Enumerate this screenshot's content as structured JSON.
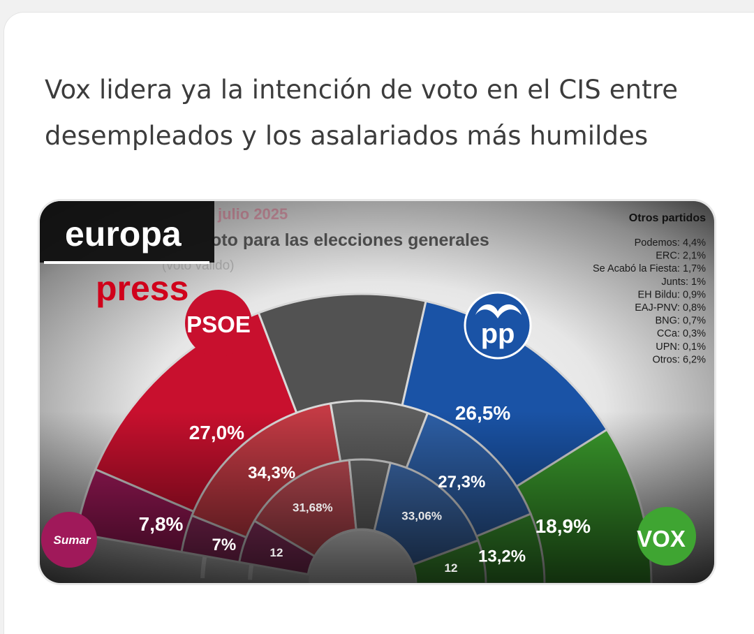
{
  "headline": "Vox lidera ya la intención de voto en el CIS entre desempleados y los asalariados más humildes",
  "logo": {
    "word1": "europa",
    "word2": "press"
  },
  "chart_data": {
    "type": "pie",
    "subtype": "semicircle-nested",
    "title_fragments": {
      "date": "julio 2025",
      "title": "oto para las elecciones generales",
      "subtitle": "(voto válido)"
    },
    "party_logos": {
      "psoe": "PSOE",
      "pp": "pp",
      "sumar": "Sumar",
      "vox": "VOX"
    },
    "rings": [
      {
        "name": "outer",
        "segments": [
          {
            "party": "Sumar",
            "value": 7.8,
            "label": "7,8%",
            "color": "#a0195a"
          },
          {
            "party": "PSOE",
            "value": 27.0,
            "label": "27,0%",
            "color": "#c8102e"
          },
          {
            "party": "Otros",
            "value": 19.8,
            "label": "",
            "color": "#525252"
          },
          {
            "party": "PP",
            "value": 26.5,
            "label": "26,5%",
            "color": "#1a53a6"
          },
          {
            "party": "Vox",
            "value": 18.9,
            "label": "18,9%",
            "color": "#3a9a2c"
          }
        ]
      },
      {
        "name": "middle",
        "segments": [
          {
            "party": "Sumar",
            "value": 7,
            "label": "7%",
            "color": "#8f2a5e"
          },
          {
            "party": "PSOE",
            "value": 34.3,
            "label": "34,3%",
            "color": "#c33a44"
          },
          {
            "party": "Otros",
            "value": 18.2,
            "label": "",
            "color": "#5e5e5e"
          },
          {
            "party": "PP",
            "value": 27.3,
            "label": "27,3%",
            "color": "#2d5fa6"
          },
          {
            "party": "Vox",
            "value": 13.2,
            "label": "13,2%",
            "color": "#3c9a30"
          }
        ]
      },
      {
        "name": "inner",
        "segments": [
          {
            "party": "Sumar",
            "value": 12,
            "label": "12",
            "color": "#8a3160"
          },
          {
            "party": "PSOE",
            "value": 31.68,
            "label": "31,68%",
            "color": "#bf4b54"
          },
          {
            "party": "Otros",
            "value": 11.26,
            "label": "",
            "color": "#666666"
          },
          {
            "party": "PP",
            "value": 33.06,
            "label": "33,06%",
            "color": "#3b68a8"
          },
          {
            "party": "Vox",
            "value": 12,
            "label": "12",
            "color": "#43a036"
          }
        ]
      }
    ],
    "otros": {
      "title": "Otros partidos",
      "items": [
        "Podemos: 4,4%",
        "ERC: 2,1%",
        "Se Acabó la Fiesta: 1,7%",
        "Junts: 1%",
        "EH Bildu: 0,9%",
        "EAJ-PNV: 0,8%",
        "BNG: 0,7%",
        "CCa: 0,3%",
        "UPN: 0,1%",
        "Otros: 6,2%"
      ]
    }
  }
}
